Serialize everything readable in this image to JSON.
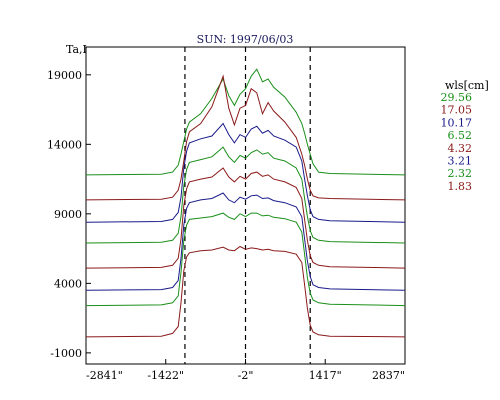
{
  "chart_data": {
    "type": "line",
    "title": "SUN: 1997/06/03",
    "ylabel": "Ta,I",
    "xlabel": "",
    "xlim": [
      -2841,
      2837
    ],
    "ylim": [
      -1800,
      21000
    ],
    "x_ticks": [
      {
        "value": -2841,
        "label": "-2841\""
      },
      {
        "value": -1422,
        "label": "-1422\""
      },
      {
        "value": -2,
        "label": "-2\""
      },
      {
        "value": 1417,
        "label": "1417\""
      },
      {
        "value": 2837,
        "label": "2837\""
      }
    ],
    "y_ticks": [
      -1000,
      4000,
      9000,
      14000,
      19000
    ],
    "vlines": [
      -1080,
      -2,
      1150
    ],
    "legend_title": "wls[cm]",
    "legend_position": "right",
    "series_profile": {
      "x": [
        -2841,
        -1500,
        -1300,
        -1200,
        -1150,
        -1100,
        -1050,
        -1000,
        -800,
        -600,
        -400,
        -300,
        -200,
        -100,
        0,
        100,
        200,
        300,
        400,
        500,
        700,
        900,
        1000,
        1050,
        1100,
        1150,
        1200,
        1300,
        1500,
        2837
      ]
    },
    "series": [
      {
        "name": "29.56",
        "color": "#1a8f1a",
        "values": [
          11800,
          11850,
          12000,
          12500,
          13300,
          14200,
          15100,
          15600,
          16200,
          17300,
          18700,
          17500,
          16800,
          17600,
          18000,
          18900,
          19400,
          18500,
          18700,
          18100,
          17400,
          16300,
          15500,
          14800,
          14000,
          13300,
          12600,
          12000,
          11900,
          11800
        ]
      },
      {
        "name": "17.05",
        "color": "#8b1a1a",
        "values": [
          10000,
          10050,
          10200,
          10700,
          11500,
          12800,
          14200,
          14900,
          15500,
          16700,
          18900,
          16600,
          15400,
          16600,
          16800,
          18000,
          17700,
          16200,
          17000,
          16400,
          15600,
          14500,
          13300,
          12500,
          11500,
          10700,
          10300,
          10150,
          10100,
          10000
        ]
      },
      {
        "name": "10.17",
        "color": "#1a1a8b",
        "values": [
          8400,
          8450,
          8600,
          9100,
          10200,
          12300,
          13500,
          14100,
          14400,
          14600,
          15500,
          14700,
          14100,
          14700,
          14500,
          15100,
          15300,
          14800,
          15000,
          14600,
          14300,
          13800,
          12800,
          11500,
          10300,
          9300,
          8800,
          8600,
          8500,
          8400
        ]
      },
      {
        "name": "6.52",
        "color": "#1a8f1a",
        "values": [
          6900,
          6950,
          7100,
          7600,
          8800,
          11000,
          12200,
          12700,
          12900,
          13100,
          13800,
          13100,
          12700,
          13200,
          13000,
          13400,
          13600,
          13300,
          13400,
          13000,
          12800,
          12300,
          11500,
          10100,
          8800,
          7800,
          7300,
          7100,
          7000,
          6900
        ]
      },
      {
        "name": "4.32",
        "color": "#8b1a1a",
        "values": [
          5100,
          5150,
          5300,
          5800,
          7200,
          9600,
          10800,
          11300,
          11500,
          11650,
          12300,
          11650,
          11300,
          11700,
          11500,
          11900,
          12000,
          11700,
          11800,
          11500,
          11300,
          10900,
          10100,
          8600,
          7100,
          6000,
          5500,
          5300,
          5200,
          5100
        ]
      },
      {
        "name": "3.21",
        "color": "#1a1a8b",
        "values": [
          3500,
          3550,
          3700,
          4200,
          5800,
          8200,
          9400,
          9800,
          10000,
          10100,
          10500,
          10000,
          9800,
          10200,
          10050,
          10300,
          10350,
          10100,
          10150,
          9950,
          9800,
          9500,
          8800,
          7200,
          5600,
          4500,
          3900,
          3700,
          3600,
          3500
        ]
      },
      {
        "name": "2.32",
        "color": "#1a8f1a",
        "values": [
          2400,
          2450,
          2600,
          3100,
          4800,
          7100,
          8200,
          8600,
          8700,
          8800,
          9050,
          8750,
          8600,
          9000,
          8800,
          9050,
          9050,
          8850,
          8900,
          8750,
          8650,
          8400,
          7700,
          6100,
          4400,
          3300,
          2800,
          2600,
          2500,
          2400
        ]
      },
      {
        "name": "1.83",
        "color": "#8b1a1a",
        "values": [
          150,
          200,
          400,
          900,
          2600,
          4900,
          5900,
          6200,
          6350,
          6400,
          6600,
          6400,
          6350,
          6650,
          6450,
          6550,
          6500,
          6400,
          6450,
          6350,
          6300,
          6100,
          5500,
          3900,
          2200,
          1000,
          500,
          300,
          200,
          150
        ]
      }
    ]
  }
}
